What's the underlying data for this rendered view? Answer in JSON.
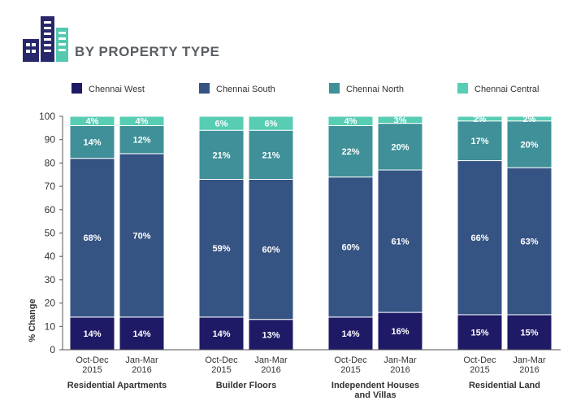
{
  "header": {
    "title": "BY PROPERTY TYPE",
    "icon": "buildings-icon"
  },
  "colors": {
    "Chennai West": "#1f1a66",
    "Chennai South": "#355484",
    "Chennai North": "#3f9098",
    "Chennai Central": "#57cdb4",
    "icon_dark": "#27286b",
    "icon_light": "#55c9b0"
  },
  "chart_data": {
    "type": "bar",
    "stacked": true,
    "ylabel": "% Change",
    "ylim": [
      0,
      100
    ],
    "yticks": [
      0,
      10,
      20,
      30,
      40,
      50,
      60,
      70,
      80,
      90,
      100
    ],
    "legend": {
      "placement": "top",
      "entries": [
        "Chennai West",
        "Chennai South",
        "Chennai North",
        "Chennai Central"
      ]
    },
    "periods": [
      [
        "Oct-Dec",
        "2015"
      ],
      [
        "Jan-Mar",
        "2016"
      ]
    ],
    "groups": [
      {
        "label": [
          "Residential Apartments"
        ],
        "bars": [
          {
            "period": 0,
            "values": [
              14,
              68,
              14,
              4
            ]
          },
          {
            "period": 1,
            "values": [
              14,
              70,
              12,
              4
            ]
          }
        ]
      },
      {
        "label": [
          "Builder Floors"
        ],
        "bars": [
          {
            "period": 0,
            "values": [
              14,
              59,
              21,
              6
            ]
          },
          {
            "period": 1,
            "values": [
              13,
              60,
              21,
              6
            ]
          }
        ]
      },
      {
        "label": [
          "Independent Houses",
          "and Villas"
        ],
        "bars": [
          {
            "period": 0,
            "values": [
              14,
              60,
              22,
              4
            ]
          },
          {
            "period": 1,
            "values": [
              16,
              61,
              20,
              3
            ]
          }
        ]
      },
      {
        "label": [
          "Residential Land"
        ],
        "bars": [
          {
            "period": 0,
            "values": [
              15,
              66,
              17,
              2
            ]
          },
          {
            "period": 1,
            "values": [
              15,
              63,
              20,
              2
            ]
          }
        ]
      }
    ],
    "series": [
      {
        "name": "Chennai West"
      },
      {
        "name": "Chennai South"
      },
      {
        "name": "Chennai North"
      },
      {
        "name": "Chennai Central"
      }
    ]
  }
}
